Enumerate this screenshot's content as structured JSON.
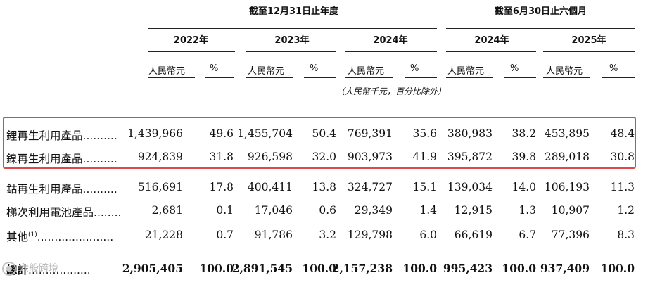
{
  "header": {
    "group1": "截至12月31日止年度",
    "group2": "截至6月30日止六個月",
    "years": [
      "2022年",
      "2023年",
      "2024年",
      "2024年",
      "2025年"
    ],
    "currency_label": "人民幣元",
    "pct_label": "%",
    "unit_note": "（人民幣千元，百分比除外）"
  },
  "rows": [
    {
      "label": "鋰再生利用產品",
      "values": [
        "1,439,966",
        "49.6",
        "1,455,704",
        "50.4",
        "769,391",
        "35.6",
        "380,983",
        "38.2",
        "453,895",
        "48.4"
      ]
    },
    {
      "label": "鎳再生利用產品",
      "values": [
        "924,839",
        "31.8",
        "926,598",
        "32.0",
        "903,973",
        "41.9",
        "395,872",
        "39.8",
        "289,018",
        "30.8"
      ]
    },
    {
      "label": "鈷再生利用產品",
      "values": [
        "516,691",
        "17.8",
        "400,411",
        "13.8",
        "324,727",
        "15.1",
        "139,034",
        "14.0",
        "106,193",
        "11.3"
      ]
    },
    {
      "label": "梯次利用電池產品",
      "values": [
        "2,681",
        "0.1",
        "17,046",
        "0.6",
        "29,349",
        "1.4",
        "12,915",
        "1.3",
        "10,907",
        "1.2"
      ]
    },
    {
      "label": "其他",
      "label_sup": "(1)",
      "values": [
        "21,228",
        "0.7",
        "91,786",
        "3.2",
        "129,798",
        "6.0",
        "66,619",
        "6.7",
        "77,396",
        "8.3"
      ]
    },
    {
      "label": "總計",
      "values": [
        "2,905,405",
        "100.0",
        "2,891,545",
        "100.0",
        "2,157,238",
        "100.0",
        "995,423",
        "100.0",
        "937,409",
        "100.0"
      ]
    }
  ],
  "watermark": "六般跨境",
  "highlight_color": "#e0474c"
}
